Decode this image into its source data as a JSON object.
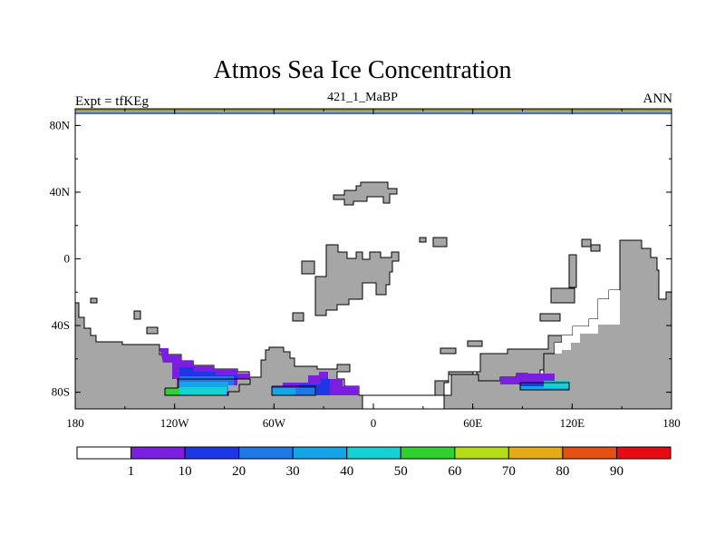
{
  "header": {
    "title": "Atmos Sea Ice Concentration",
    "subtitle": "421_1_MaBP",
    "left_label": "Expt = tfKEg",
    "right_label": "ANN"
  },
  "map": {
    "projection": "cylindrical equidistant",
    "lon_range": [
      -180,
      180
    ],
    "lat_range": [
      -90,
      90
    ],
    "lat_ticks": [
      {
        "label": "80N",
        "lat": 80
      },
      {
        "label": "40N",
        "lat": 40
      },
      {
        "label": "0",
        "lat": 0
      },
      {
        "label": "40S",
        "lat": -40
      },
      {
        "label": "80S",
        "lat": -80
      }
    ],
    "lon_ticks": [
      {
        "label": "180",
        "lon": -180
      },
      {
        "label": "120W",
        "lon": -120
      },
      {
        "label": "60W",
        "lon": -60
      },
      {
        "label": "0",
        "lon": 0
      },
      {
        "label": "60E",
        "lon": 60
      },
      {
        "label": "120E",
        "lon": 120
      },
      {
        "label": "180",
        "lon": 180
      }
    ],
    "land_color": "#a6a6a6"
  },
  "colorbar": {
    "colors": [
      "#ffffff",
      "#7a1ee0",
      "#1e37e6",
      "#1e78e6",
      "#14a5e6",
      "#14d2d2",
      "#2ed12e",
      "#b4dc14",
      "#e6aa14",
      "#e65014",
      "#e60a14"
    ],
    "labels": [
      "1",
      "10",
      "20",
      "30",
      "40",
      "50",
      "60",
      "70",
      "80",
      "90"
    ]
  }
}
